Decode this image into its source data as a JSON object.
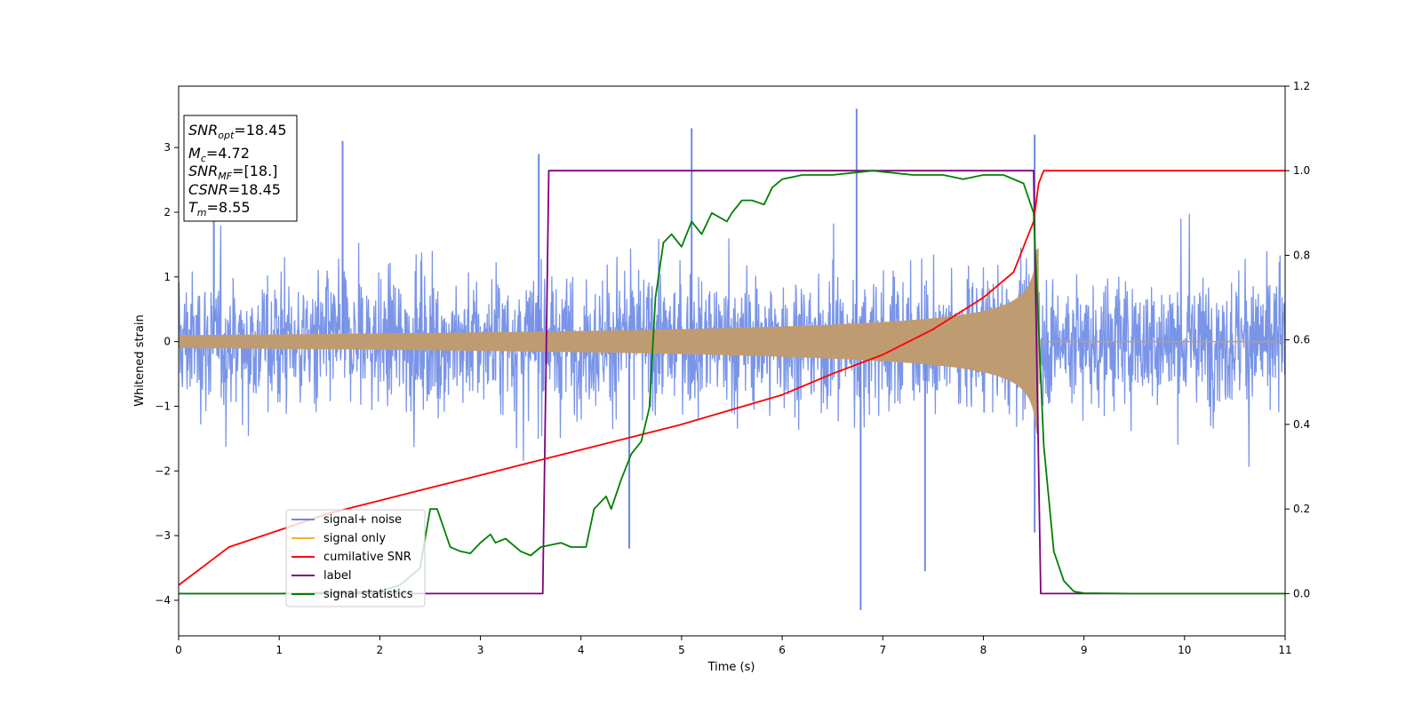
{
  "chart_data": {
    "type": "line",
    "xlabel": "Time (s)",
    "ylabel": "Whitened strain",
    "xlim": [
      0,
      11
    ],
    "ylim_left": [
      -4.55,
      3.95
    ],
    "ylim_right": [
      -0.1,
      1.2
    ],
    "x_ticks": [
      0,
      1,
      2,
      3,
      4,
      5,
      6,
      7,
      8,
      9,
      10,
      11
    ],
    "y_ticks_left": [
      -4,
      -3,
      -2,
      -1,
      0,
      1,
      2,
      3
    ],
    "y_ticks_right": [
      0.0,
      0.2,
      0.4,
      0.6,
      0.8,
      1.0,
      1.2
    ],
    "y_tick_labels_left": [
      "−4",
      "−3",
      "−2",
      "−1",
      "0",
      "1",
      "2",
      "3"
    ],
    "y_tick_labels_right": [
      "0.0",
      "0.2",
      "0.4",
      "0.6",
      "0.8",
      "1.0",
      "1.2"
    ],
    "legend_location": "lower-left",
    "colors": {
      "signal_noise": "#6b8ae6",
      "signal_only": "#f5b041",
      "cumulative_snr": "#ff0000",
      "label": "#800080",
      "signal_statistics": "#008000"
    },
    "annotation": {
      "snr_opt": "=18.45",
      "mc": "=4.72",
      "snr_mf": "=[18.]",
      "csnr": "=18.45",
      "tm": "=8.55"
    },
    "series": [
      {
        "name": "signal+ noise",
        "axis": "left",
        "note_values": "noise band approx ±1.6 with peaks up to 3.6 and down to -4.1",
        "peaks": [
          [
            0.35,
            2.9
          ],
          [
            1.63,
            3.1
          ],
          [
            3.58,
            2.9
          ],
          [
            5.1,
            3.3
          ],
          [
            6.74,
            3.6
          ],
          [
            8.51,
            3.2
          ],
          [
            6.78,
            -4.15
          ],
          [
            4.48,
            -3.2
          ],
          [
            7.42,
            -3.55
          ],
          [
            8.51,
            -2.95
          ]
        ]
      },
      {
        "name": "signal only",
        "axis": "left",
        "chirp_end": 8.55,
        "amplitude_start": 0.1,
        "amplitude_end": 1.45
      },
      {
        "name": "cumilative SNR",
        "axis": "right",
        "x": [
          0,
          0.5,
          1,
          1.5,
          2,
          2.5,
          3,
          3.5,
          4,
          4.5,
          5,
          5.5,
          6,
          6.5,
          7,
          7.5,
          8,
          8.3,
          8.5,
          8.55,
          8.6,
          11
        ],
        "y": [
          0.02,
          0.11,
          0.15,
          0.19,
          0.22,
          0.25,
          0.28,
          0.31,
          0.34,
          0.37,
          0.4,
          0.435,
          0.47,
          0.52,
          0.565,
          0.625,
          0.7,
          0.76,
          0.88,
          0.97,
          1.0,
          1.0
        ]
      },
      {
        "name": "label",
        "axis": "right",
        "x": [
          0,
          3.62,
          3.68,
          8.5,
          8.57,
          11
        ],
        "y": [
          0,
          0,
          1,
          1,
          0,
          0
        ]
      },
      {
        "name": "signal statistics",
        "axis": "right",
        "x": [
          0,
          1.0,
          2.0,
          2.2,
          2.4,
          2.5,
          2.57,
          2.7,
          2.8,
          2.9,
          3.0,
          3.1,
          3.15,
          3.25,
          3.4,
          3.5,
          3.6,
          3.8,
          3.9,
          4.05,
          4.13,
          4.25,
          4.3,
          4.4,
          4.5,
          4.6,
          4.68,
          4.74,
          4.82,
          4.9,
          5.0,
          5.1,
          5.2,
          5.3,
          5.45,
          5.5,
          5.6,
          5.7,
          5.82,
          5.9,
          6.0,
          6.2,
          6.5,
          6.9,
          7.3,
          7.6,
          7.8,
          8.0,
          8.2,
          8.4,
          8.5,
          8.6,
          8.7,
          8.8,
          8.9,
          9.0,
          9.5,
          11
        ],
        "y": [
          0,
          0.0,
          0.005,
          0.02,
          0.06,
          0.2,
          0.2,
          0.11,
          0.1,
          0.095,
          0.12,
          0.14,
          0.12,
          0.13,
          0.1,
          0.09,
          0.11,
          0.12,
          0.11,
          0.11,
          0.2,
          0.23,
          0.2,
          0.27,
          0.33,
          0.36,
          0.44,
          0.7,
          0.83,
          0.85,
          0.82,
          0.88,
          0.85,
          0.9,
          0.88,
          0.9,
          0.93,
          0.93,
          0.92,
          0.96,
          0.98,
          0.99,
          0.99,
          1.0,
          0.99,
          0.99,
          0.98,
          0.99,
          0.99,
          0.97,
          0.9,
          0.35,
          0.1,
          0.03,
          0.005,
          0.001,
          0.0,
          0.0
        ]
      }
    ]
  }
}
